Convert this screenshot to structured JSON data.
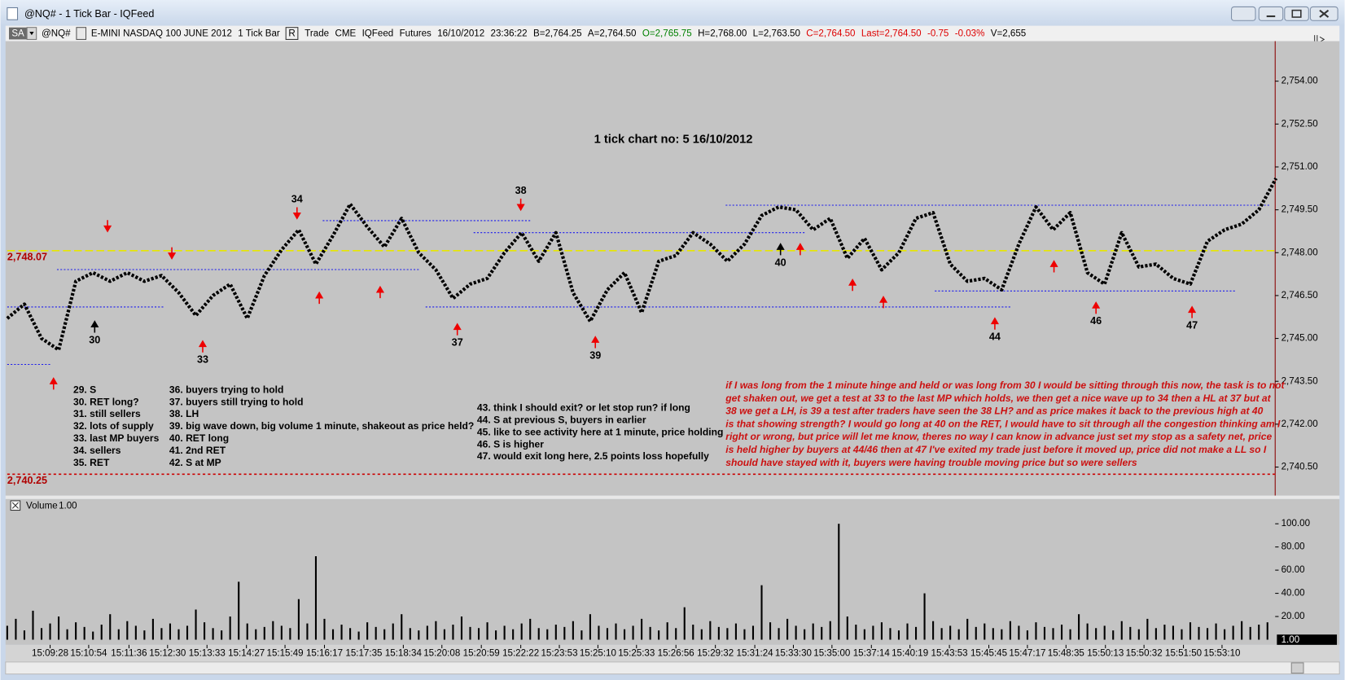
{
  "window": {
    "title": "@NQ# - 1 Tick Bar - IQFeed"
  },
  "toolbar": {
    "button": "SA",
    "items": [
      {
        "text": "@NQ#",
        "color": "#000000"
      },
      {
        "text": "E-MINI NASDAQ 100 JUNE 2012",
        "color": "#000000"
      },
      {
        "text": "1 Tick Bar",
        "color": "#000000"
      },
      {
        "text": "R",
        "color": "#000000",
        "boxed": true
      },
      {
        "text": "Trade",
        "color": "#000000"
      },
      {
        "text": "CME",
        "color": "#000000"
      },
      {
        "text": "IQFeed",
        "color": "#000000"
      },
      {
        "text": "Futures",
        "color": "#000000"
      },
      {
        "text": "16/10/2012",
        "color": "#000000"
      },
      {
        "text": "23:36:22",
        "color": "#000000"
      },
      {
        "text": "B=2,764.25",
        "color": "#000000"
      },
      {
        "text": "A=2,764.50",
        "color": "#000000"
      },
      {
        "text": "O=2,765.75",
        "color": "#008000"
      },
      {
        "text": "H=2,768.00",
        "color": "#000000"
      },
      {
        "text": "L=2,763.50",
        "color": "#000000"
      },
      {
        "text": "C=2,764.50",
        "color": "#dd0000"
      },
      {
        "text": "Last=2,764.50",
        "color": "#dd0000"
      },
      {
        "text": "-0.75",
        "color": "#dd0000"
      },
      {
        "text": "-0.03%",
        "color": "#dd0000"
      },
      {
        "text": "V=2,655",
        "color": "#000000"
      }
    ]
  },
  "notes": [
    [
      "29. S",
      "30. RET long?",
      "31. still sellers",
      "32. lots of supply",
      "33. last MP buyers",
      "34. sellers",
      "35. RET"
    ],
    [
      "36. buyers trying to hold",
      "37. buyers still trying to hold",
      "38. LH",
      "39. big wave down, big volume 1 minute, shakeout as price held?",
      "40. RET long",
      "41. 2nd RET",
      "42. S at MP"
    ],
    [
      "43. think I should exit? or let stop run? if long",
      "44. S at previous S, buyers in earlier",
      "45. like to see activity here at 1 minute, price holding",
      "46. S is higher",
      "47. would exit long here, 2.5 points loss hopefully"
    ]
  ],
  "commentary": [
    "if I was long from the 1 minute hinge and held or was long from 30 I would be sitting through this now, the task is to not",
    "get shaken out, we get a test at 33 to the last MP which holds, we then get a nice wave up to 34 then a HL at 37 but at",
    "38 we get a LH, is 39 a test after traders have seen the 38 LH? and as price makes it back to the previous high at 40",
    "is that showing strength? I would go long at 40 on the RET, I would have to sit through all the congestion thinking am I",
    "right or wrong, but price will let me know, theres no way I can know in advance just set my stop as a safety net, price",
    "is held higher by buyers at 44/46 then at 47 I've exited my trade just before it moved up, price did not make a LL so I",
    "should have stayed with it, buyers were having trouble moving price but so were sellers"
  ],
  "chart_data": [
    {
      "type": "line",
      "title": "1 tick chart no: 5 16/10/2012",
      "color": "#000000",
      "xlim": [
        0,
        74
      ],
      "ylim": [
        2739.5,
        2755.4
      ],
      "yticks": [
        {
          "value": 2740.5,
          "label": "2,740.50"
        },
        {
          "value": 2742,
          "label": "2,742.00"
        },
        {
          "value": 2743.5,
          "label": "2,743.50"
        },
        {
          "value": 2745,
          "label": "2,745.00"
        },
        {
          "value": 2746.5,
          "label": "2,746.50"
        },
        {
          "value": 2748,
          "label": "2,748.00"
        },
        {
          "value": 2749.5,
          "label": "2,749.50"
        },
        {
          "value": 2751,
          "label": "2,751.00"
        },
        {
          "value": 2752.5,
          "label": "2,752.50"
        },
        {
          "value": 2754,
          "label": "2,754.00"
        }
      ],
      "values": [
        2745.7,
        2746.2,
        2745.0,
        2744.6,
        2747.0,
        2747.3,
        2747.0,
        2747.3,
        2747.0,
        2747.2,
        2746.6,
        2745.8,
        2746.5,
        2746.9,
        2745.7,
        2747.2,
        2748.1,
        2748.8,
        2747.6,
        2748.6,
        2749.7,
        2748.9,
        2748.2,
        2749.2,
        2748.0,
        2747.4,
        2746.4,
        2746.9,
        2747.1,
        2748.0,
        2748.7,
        2747.7,
        2748.7,
        2746.6,
        2745.6,
        2746.7,
        2747.3,
        2745.9,
        2747.7,
        2747.9,
        2748.7,
        2748.3,
        2747.7,
        2748.3,
        2749.3,
        2749.6,
        2749.5,
        2748.8,
        2749.2,
        2747.8,
        2748.5,
        2747.4,
        2748.0,
        2749.2,
        2749.4,
        2747.6,
        2747.0,
        2747.1,
        2746.7,
        2748.3,
        2749.6,
        2748.8,
        2749.4,
        2747.3,
        2746.9,
        2748.7,
        2747.5,
        2747.6,
        2747.1,
        2746.9,
        2748.4,
        2748.8,
        2749.0,
        2749.5,
        2750.6
      ],
      "hlines": [
        {
          "value": 2748.07,
          "label": "2,748.07",
          "color": "#e6e600"
        },
        {
          "value": 2740.25,
          "label": "2,740.25",
          "color": "#cc0000"
        }
      ],
      "levels": [
        {
          "x0": 0,
          "x1": 2.5,
          "y": 2744.09
        },
        {
          "x0": 0,
          "x1": 9.1,
          "y": 2746.1
        },
        {
          "x0": 2.9,
          "x1": 24.1,
          "y": 2747.41
        },
        {
          "x0": 18.4,
          "x1": 30.5,
          "y": 2749.12
        },
        {
          "x0": 24.4,
          "x1": 58.6,
          "y": 2746.1
        },
        {
          "x0": 27.2,
          "x1": 46.5,
          "y": 2748.7
        },
        {
          "x0": 41.9,
          "x1": 73.6,
          "y": 2749.66
        },
        {
          "x0": 54.1,
          "x1": 71.6,
          "y": 2746.66
        }
      ],
      "annotations": [
        {
          "label": "30",
          "x": 5.1,
          "y": 2745.59,
          "dir": "up",
          "color": "#000000"
        },
        {
          "label": "33",
          "x": 11.4,
          "y": 2744.9,
          "dir": "up",
          "color": "#ee0000"
        },
        {
          "label": "34",
          "x": 16.9,
          "y": 2749.2,
          "dir": "down",
          "color": "#ee0000"
        },
        {
          "label": "37",
          "x": 26.25,
          "y": 2745.5,
          "dir": "up",
          "color": "#ee0000"
        },
        {
          "label": "38",
          "x": 29.95,
          "y": 2749.5,
          "dir": "down",
          "color": "#ee0000"
        },
        {
          "label": "39",
          "x": 34.3,
          "y": 2745.05,
          "dir": "up",
          "color": "#ee0000"
        },
        {
          "label": "40",
          "x": 45.1,
          "y": 2748.3,
          "dir": "up",
          "color": "#000000"
        },
        {
          "label": "44",
          "x": 57.6,
          "y": 2745.7,
          "dir": "up",
          "color": "#ee0000"
        },
        {
          "label": "46",
          "x": 63.5,
          "y": 2746.25,
          "dir": "up",
          "color": "#ee0000"
        },
        {
          "label": "47",
          "x": 69.1,
          "y": 2746.1,
          "dir": "up",
          "color": "#ee0000"
        },
        {
          "x": 5.85,
          "y": 2748.75,
          "dir": "down",
          "color": "#ee0000"
        },
        {
          "x": 9.6,
          "y": 2747.8,
          "dir": "down",
          "color": "#ee0000"
        },
        {
          "x": 2.7,
          "y": 2743.6,
          "dir": "up",
          "color": "#ee0000"
        },
        {
          "x": 18.2,
          "y": 2746.6,
          "dir": "up",
          "color": "#ee0000"
        },
        {
          "x": 21.75,
          "y": 2746.8,
          "dir": "up",
          "color": "#ee0000"
        },
        {
          "x": 46.25,
          "y": 2748.3,
          "dir": "up",
          "color": "#ee0000"
        },
        {
          "x": 49.3,
          "y": 2747.05,
          "dir": "up",
          "color": "#ee0000"
        },
        {
          "x": 51.1,
          "y": 2746.45,
          "dir": "up",
          "color": "#ee0000"
        },
        {
          "x": 61.05,
          "y": 2747.7,
          "dir": "up",
          "color": "#ee0000"
        }
      ]
    },
    {
      "type": "bar",
      "title": "Volume",
      "scale_label": "1.00",
      "last_label": "1.00",
      "color": "#000000",
      "xlim": [
        0,
        148
      ],
      "ylim": [
        0,
        108
      ],
      "yticks": [
        {
          "value": 20,
          "label": "20.00"
        },
        {
          "value": 40,
          "label": "40.00"
        },
        {
          "value": 60,
          "label": "60.00"
        },
        {
          "value": 80,
          "label": "80.00"
        },
        {
          "value": 100,
          "label": "100.00"
        }
      ],
      "xticks": [
        {
          "value": 5,
          "label": "15:09:28"
        },
        {
          "value": 9.5,
          "label": "15:10:54"
        },
        {
          "value": 14.2,
          "label": "15:11:36"
        },
        {
          "value": 18.7,
          "label": "15:12:30"
        },
        {
          "value": 23.3,
          "label": "15:13:33"
        },
        {
          "value": 27.9,
          "label": "15:14:27"
        },
        {
          "value": 32.4,
          "label": "15:15:49"
        },
        {
          "value": 37,
          "label": "15:16:17"
        },
        {
          "value": 41.6,
          "label": "15:17:35"
        },
        {
          "value": 46.2,
          "label": "15:18:34"
        },
        {
          "value": 50.7,
          "label": "15:20:08"
        },
        {
          "value": 55.3,
          "label": "15:20:59"
        },
        {
          "value": 59.9,
          "label": "15:22:22"
        },
        {
          "value": 64.4,
          "label": "15:23:53"
        },
        {
          "value": 68.9,
          "label": "15:25:10"
        },
        {
          "value": 73.4,
          "label": "15:25:33"
        },
        {
          "value": 78,
          "label": "15:26:56"
        },
        {
          "value": 82.6,
          "label": "15:29:32"
        },
        {
          "value": 87.2,
          "label": "15:31:24"
        },
        {
          "value": 91.7,
          "label": "15:33:30"
        },
        {
          "value": 96.2,
          "label": "15:35:00"
        },
        {
          "value": 100.8,
          "label": "15:37:14"
        },
        {
          "value": 105.3,
          "label": "15:40:19"
        },
        {
          "value": 109.9,
          "label": "15:43:53"
        },
        {
          "value": 114.5,
          "label": "15:45:45"
        },
        {
          "value": 119,
          "label": "15:47:17"
        },
        {
          "value": 123.5,
          "label": "15:48:35"
        },
        {
          "value": 128.1,
          "label": "15:50:13"
        },
        {
          "value": 132.6,
          "label": "15:50:32"
        },
        {
          "value": 137.2,
          "label": "15:51:50"
        },
        {
          "value": 141.7,
          "label": "15:53:10"
        }
      ],
      "values": [
        12,
        18,
        8,
        25,
        10,
        14,
        20,
        9,
        15,
        11,
        7,
        13,
        22,
        9,
        16,
        12,
        8,
        18,
        10,
        14,
        9,
        12,
        26,
        15,
        10,
        8,
        20,
        50,
        14,
        9,
        11,
        16,
        12,
        10,
        35,
        14,
        72,
        18,
        9,
        13,
        10,
        7,
        15,
        11,
        9,
        14,
        22,
        10,
        8,
        12,
        16,
        9,
        13,
        20,
        11,
        10,
        15,
        8,
        12,
        9,
        14,
        18,
        10,
        9,
        13,
        11,
        16,
        8,
        22,
        12,
        10,
        14,
        9,
        12,
        18,
        11,
        8,
        15,
        10,
        28,
        13,
        9,
        16,
        11,
        10,
        14,
        9,
        12,
        47,
        15,
        10,
        18,
        12,
        9,
        14,
        11,
        16,
        100,
        20,
        13,
        9,
        12,
        15,
        10,
        8,
        14,
        11,
        40,
        16,
        10,
        12,
        9,
        18,
        11,
        14,
        10,
        9,
        16,
        12,
        8,
        15,
        11,
        10,
        13,
        9,
        22,
        14,
        10,
        12,
        8,
        16,
        11,
        9,
        18,
        10,
        13,
        12,
        9,
        15,
        11,
        10,
        14,
        9,
        12,
        16,
        11,
        13,
        15
      ]
    }
  ]
}
